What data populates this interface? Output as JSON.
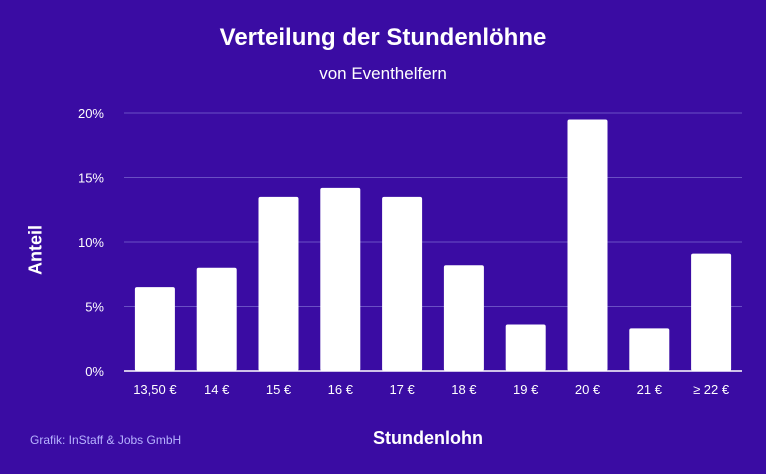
{
  "colors": {
    "background": "#3a0ca3",
    "bar": "#ffffff",
    "grid": "#6a4fc4",
    "axis": "#ffffff",
    "credit": "#b7b3ff"
  },
  "credit": "Grafik: InStaff & Jobs GmbH",
  "chart_data": {
    "type": "bar",
    "title": "Verteilung der Stundenlöhne",
    "subtitle": "von Eventhelfern",
    "xlabel": "Stundenlohn",
    "ylabel": "Anteil",
    "categories": [
      "13,50 €",
      "14 €",
      "15 €",
      "16 €",
      "17 €",
      "18 €",
      "19 €",
      "20 €",
      "21 €",
      "≥ 22 €"
    ],
    "values": [
      6.5,
      8.0,
      13.5,
      14.2,
      13.5,
      8.2,
      3.6,
      19.5,
      3.3,
      9.1
    ],
    "ylim": [
      0,
      20
    ],
    "yticks": [
      0,
      5,
      10,
      15,
      20
    ],
    "ytick_labels": [
      "0%",
      "5%",
      "10%",
      "15%",
      "20%"
    ],
    "grid": true,
    "legend": "none"
  }
}
